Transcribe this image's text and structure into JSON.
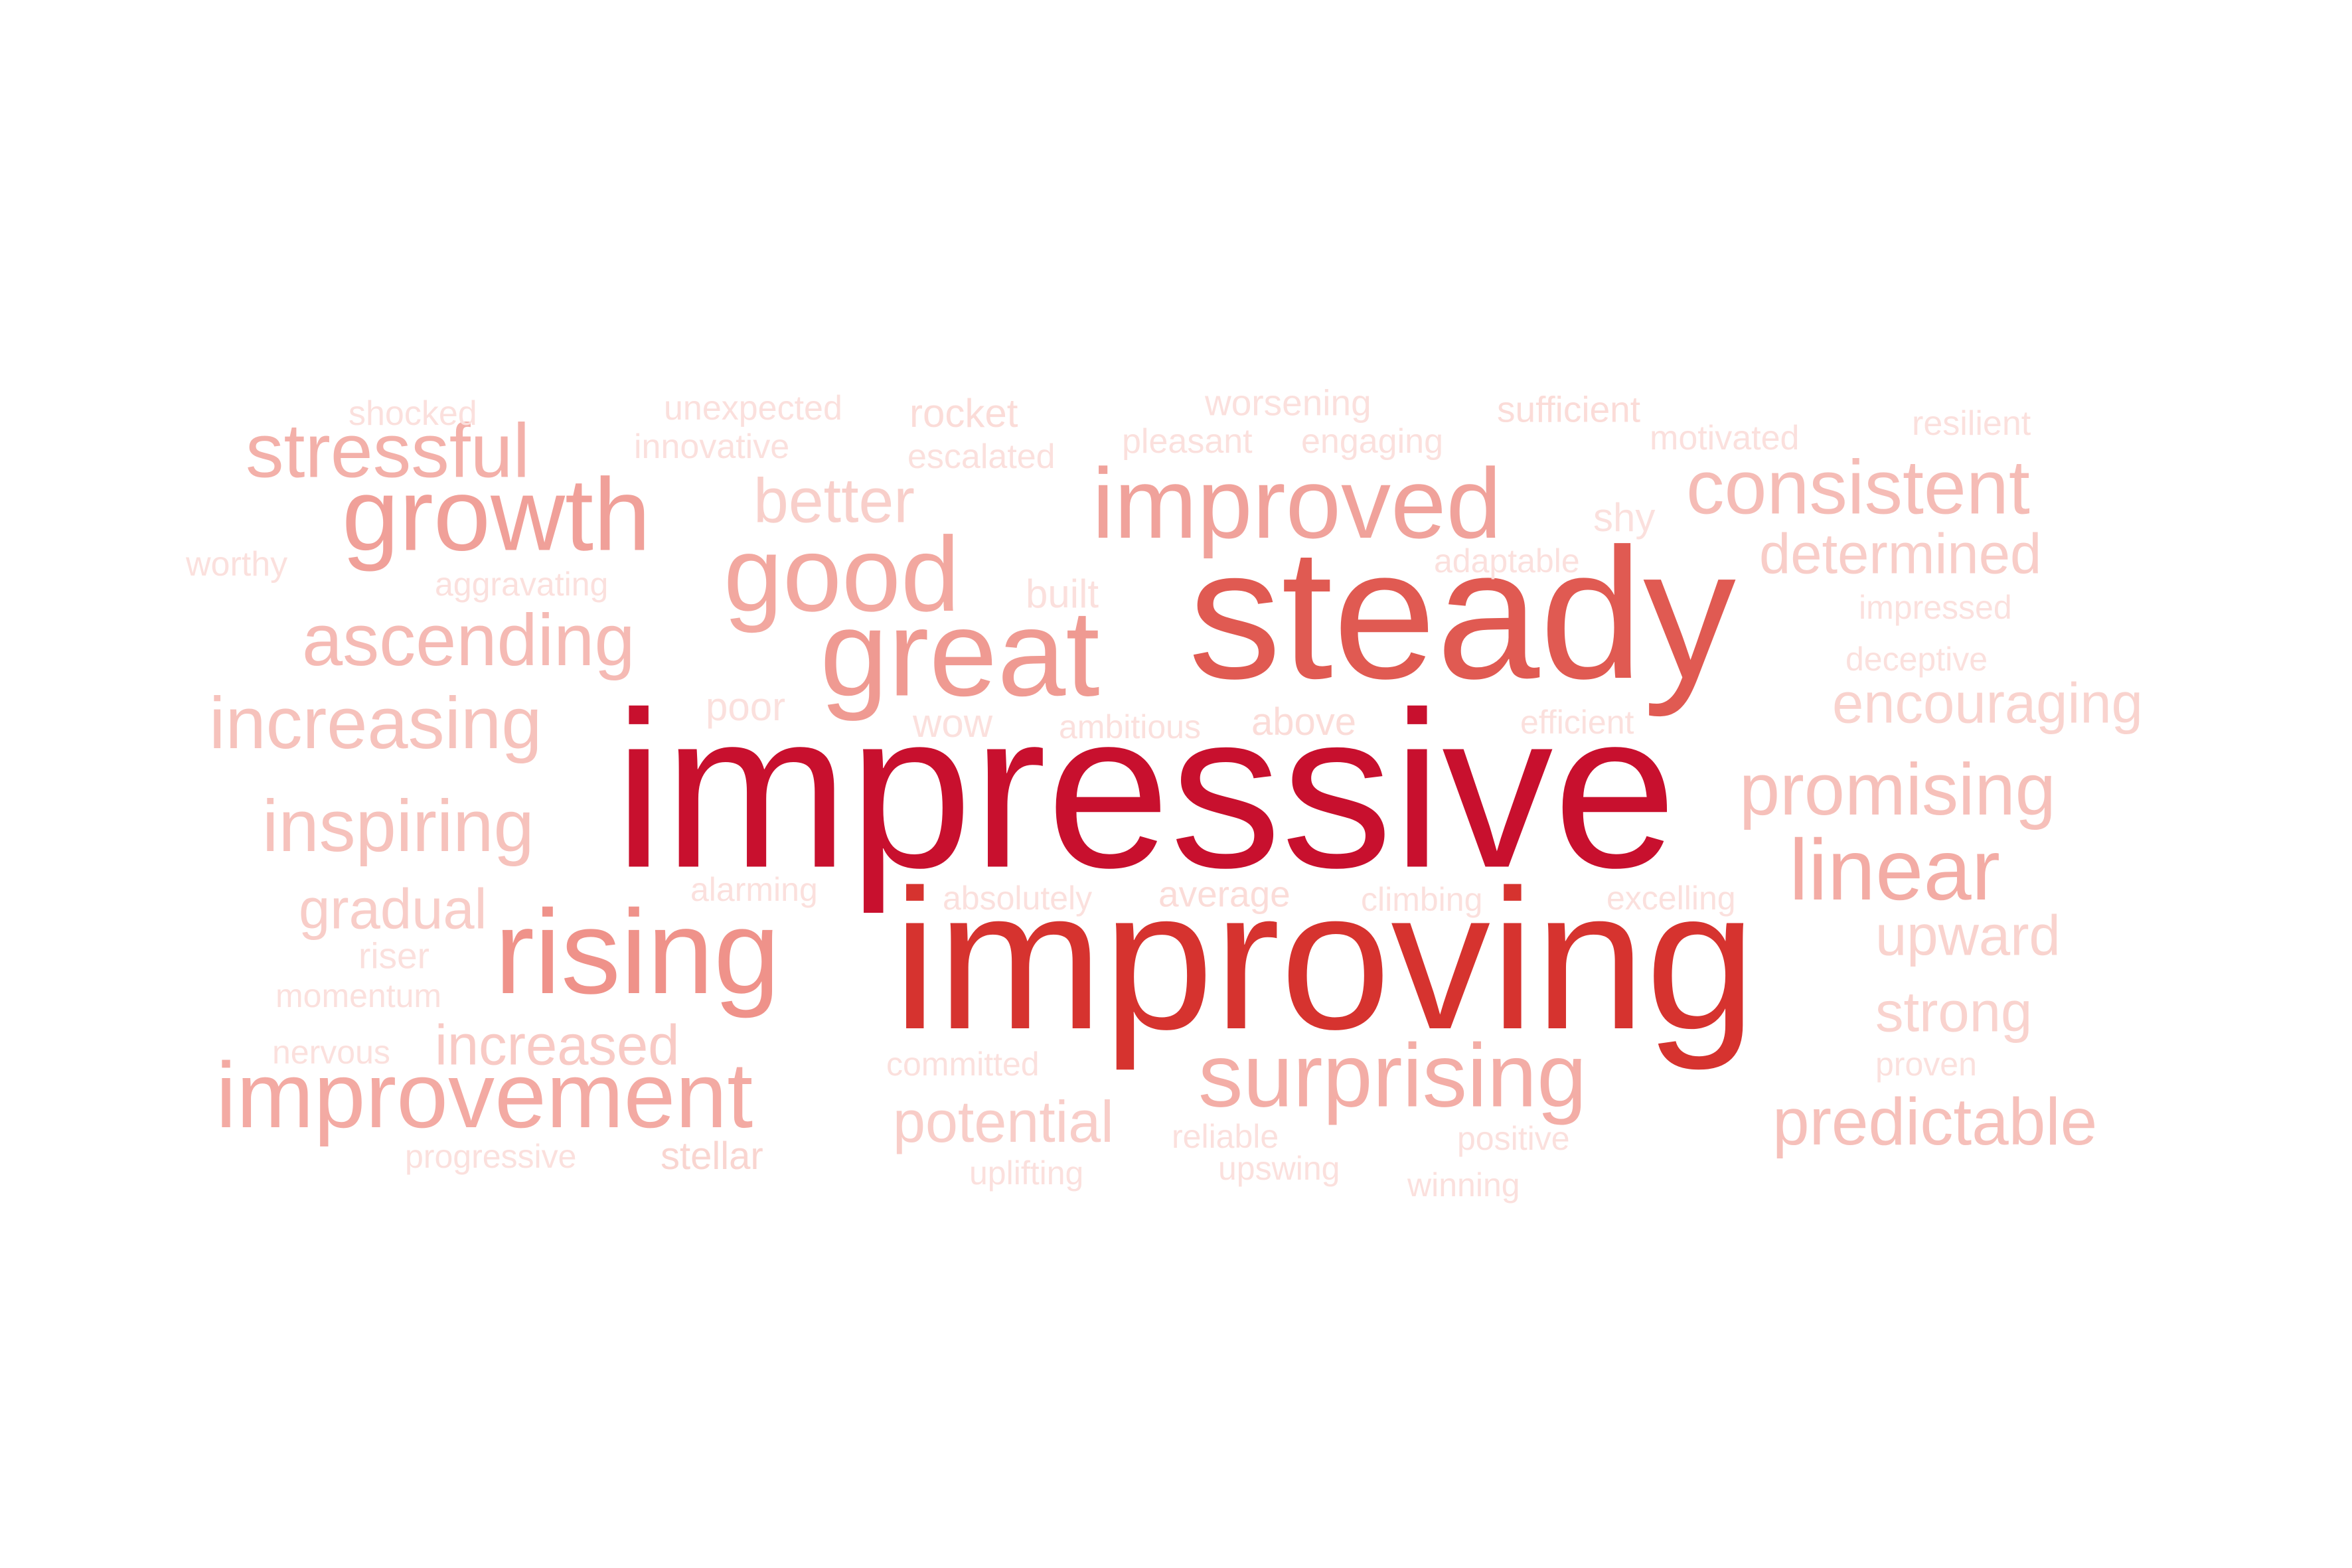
{
  "words": [
    {
      "text": "impressive",
      "weight": 1.0,
      "color": "#c8102e"
    },
    {
      "text": "improving",
      "weight": 0.88,
      "color": "#d6332f"
    },
    {
      "text": "steady",
      "weight": 0.82,
      "color": "#e05a52"
    },
    {
      "text": "great",
      "weight": 0.52,
      "color": "#ef9a92"
    },
    {
      "text": "rising",
      "weight": 0.5,
      "color": "#ef928a"
    },
    {
      "text": "good",
      "weight": 0.45,
      "color": "#f2a8a0"
    },
    {
      "text": "growth",
      "weight": 0.42,
      "color": "#f0a099"
    },
    {
      "text": "improved",
      "weight": 0.4,
      "color": "#f0a29b"
    },
    {
      "text": "improvement",
      "weight": 0.38,
      "color": "#f3aaa3"
    },
    {
      "text": "surprising",
      "weight": 0.36,
      "color": "#f3ada6"
    },
    {
      "text": "linear",
      "weight": 0.34,
      "color": "#f3aca5"
    },
    {
      "text": "consistent",
      "weight": 0.32,
      "color": "#f5bcb6"
    },
    {
      "text": "stressful",
      "weight": 0.32,
      "color": "#f3b0a9"
    },
    {
      "text": "promising",
      "weight": 0.3,
      "color": "#f6c0ba"
    },
    {
      "text": "ascending",
      "weight": 0.3,
      "color": "#f5bab4"
    },
    {
      "text": "increasing",
      "weight": 0.3,
      "color": "#f6c2bc"
    },
    {
      "text": "inspiring",
      "weight": 0.29,
      "color": "#f6c2bc"
    },
    {
      "text": "better",
      "weight": 0.26,
      "color": "#f8cfca"
    },
    {
      "text": "predictable",
      "weight": 0.28,
      "color": "#f6c0ba"
    },
    {
      "text": "potential",
      "weight": 0.24,
      "color": "#f8cdc8"
    },
    {
      "text": "increased",
      "weight": 0.24,
      "color": "#f8cac5"
    },
    {
      "text": "gradual",
      "weight": 0.24,
      "color": "#f8cdc8"
    },
    {
      "text": "determined",
      "weight": 0.24,
      "color": "#f8cdc8"
    },
    {
      "text": "encouraging",
      "weight": 0.24,
      "color": "#f9d3ce"
    },
    {
      "text": "upward",
      "weight": 0.24,
      "color": "#f9d3ce"
    },
    {
      "text": "strong",
      "weight": 0.23,
      "color": "#f9d3ce"
    },
    {
      "text": "shy",
      "weight": 0.17,
      "color": "#fbe0dd"
    },
    {
      "text": "built",
      "weight": 0.17,
      "color": "#fbe0dd"
    },
    {
      "text": "poor",
      "weight": 0.16,
      "color": "#fbe0dd"
    },
    {
      "text": "wow",
      "weight": 0.16,
      "color": "#fbe0dd"
    },
    {
      "text": "rocket",
      "weight": 0.16,
      "color": "#fbdcd8"
    },
    {
      "text": "stellar",
      "weight": 0.16,
      "color": "#f9d5d0"
    },
    {
      "text": "above",
      "weight": 0.15,
      "color": "#fbdcd8"
    },
    {
      "text": "average",
      "weight": 0.15,
      "color": "#fbdcd8"
    },
    {
      "text": "sufficient",
      "weight": 0.14,
      "color": "#fbdcd8"
    },
    {
      "text": "worsening",
      "weight": 0.14,
      "color": "#fbe0dd"
    },
    {
      "text": "riser",
      "weight": 0.14,
      "color": "#fbe0dd"
    },
    {
      "text": "shocked",
      "weight": 0.14,
      "color": "#fbe0dd"
    },
    {
      "text": "unexpected",
      "weight": 0.14,
      "color": "#fbe0dd"
    },
    {
      "text": "escalated",
      "weight": 0.14,
      "color": "#fbe0dd"
    },
    {
      "text": "pleasant",
      "weight": 0.14,
      "color": "#fbe0dd"
    },
    {
      "text": "engaging",
      "weight": 0.14,
      "color": "#fbe0dd"
    },
    {
      "text": "innovative",
      "weight": 0.14,
      "color": "#fbe0dd"
    },
    {
      "text": "motivated",
      "weight": 0.14,
      "color": "#fbe0dd"
    },
    {
      "text": "resilient",
      "weight": 0.14,
      "color": "#fbe0dd"
    },
    {
      "text": "worthy",
      "weight": 0.14,
      "color": "#fbe0dd"
    },
    {
      "text": "aggravating",
      "weight": 0.13,
      "color": "#fbe0dd"
    },
    {
      "text": "adaptable",
      "weight": 0.13,
      "color": "#fbe0dd"
    },
    {
      "text": "impressed",
      "weight": 0.13,
      "color": "#fbe0dd"
    },
    {
      "text": "deceptive",
      "weight": 0.13,
      "color": "#fbe0dd"
    },
    {
      "text": "ambitious",
      "weight": 0.13,
      "color": "#fbe0dd"
    },
    {
      "text": "efficient",
      "weight": 0.13,
      "color": "#fbe0dd"
    },
    {
      "text": "alarming",
      "weight": 0.13,
      "color": "#fbe0dd"
    },
    {
      "text": "absolutely",
      "weight": 0.13,
      "color": "#fbe0dd"
    },
    {
      "text": "climbing",
      "weight": 0.13,
      "color": "#fbe0dd"
    },
    {
      "text": "excelling",
      "weight": 0.13,
      "color": "#fbe0dd"
    },
    {
      "text": "momentum",
      "weight": 0.13,
      "color": "#fbe0dd"
    },
    {
      "text": "nervous",
      "weight": 0.13,
      "color": "#fbe0dd"
    },
    {
      "text": "committed",
      "weight": 0.13,
      "color": "#fbe0dd"
    },
    {
      "text": "reliable",
      "weight": 0.13,
      "color": "#fbe0dd"
    },
    {
      "text": "positive",
      "weight": 0.13,
      "color": "#fbe0dd"
    },
    {
      "text": "proven",
      "weight": 0.13,
      "color": "#fbe0dd"
    },
    {
      "text": "progressive",
      "weight": 0.13,
      "color": "#fbe0dd"
    },
    {
      "text": "uplifting",
      "weight": 0.13,
      "color": "#fbe0dd"
    },
    {
      "text": "upswing",
      "weight": 0.13,
      "color": "#fbe0dd"
    },
    {
      "text": "winning",
      "weight": 0.13,
      "color": "#fbe0dd"
    }
  ]
}
